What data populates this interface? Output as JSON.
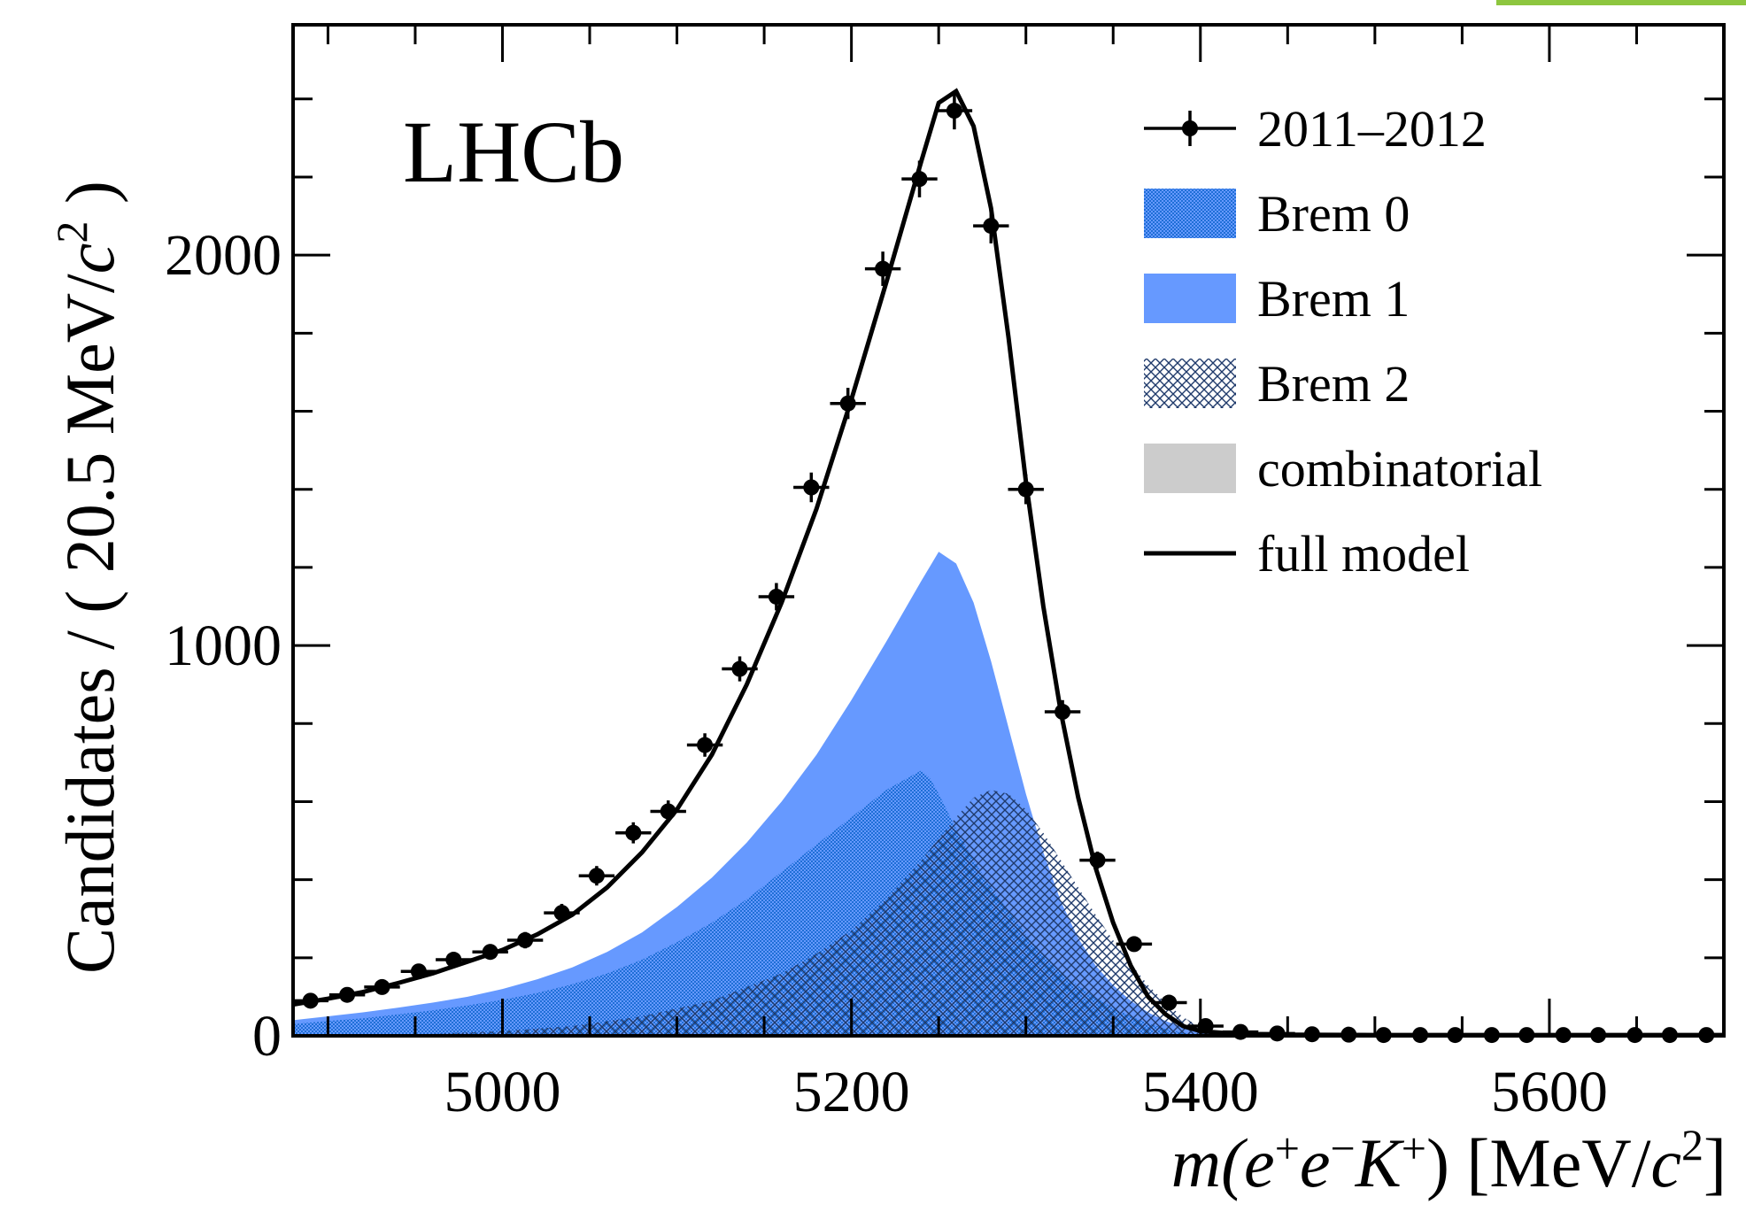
{
  "chart_data": {
    "type": "line",
    "experiment_label": "LHCb",
    "xlabel": {
      "main": "m(e",
      "plus1": "+",
      "e": "e",
      "minus": "−",
      "K": "K",
      "plus2": "+",
      "tail": ") [MeV/",
      "c": "c",
      "sq": "2",
      "end": "]"
    },
    "ylabel": {
      "main": "Candidates / ( 20.5 MeV/",
      "c": "c",
      "sq": "2",
      "end": " )"
    },
    "xlim": [
      4880,
      5700
    ],
    "ylim": [
      0,
      2590
    ],
    "x_ticks": [
      5000,
      5200,
      5400,
      5600
    ],
    "x_tick_labels": [
      "5000",
      "5200",
      "5400",
      "5600"
    ],
    "y_ticks": [
      0,
      1000,
      2000
    ],
    "y_tick_labels": [
      "0",
      "1000",
      "2000"
    ],
    "legend": {
      "placement": "top-right",
      "entries": [
        {
          "label": "2011–2012",
          "style": "data"
        },
        {
          "label": "Brem 0",
          "style": "brem0"
        },
        {
          "label": "Brem 1",
          "style": "brem1"
        },
        {
          "label": "Brem 2",
          "style": "brem2"
        },
        {
          "label": "combinatorial",
          "style": "comb"
        },
        {
          "label": "full model",
          "style": "line"
        }
      ]
    },
    "colors": {
      "brem1": "#6699ff",
      "brem0": "#1f6fd6",
      "brem2": "#1f3a6b",
      "combinatorial": "#cccccc",
      "model": "#000000"
    },
    "bin_width": 20.5,
    "data_points": [
      {
        "x": 4890,
        "y": 90,
        "err": 15
      },
      {
        "x": 4911,
        "y": 105,
        "err": 15
      },
      {
        "x": 4931,
        "y": 125,
        "err": 16
      },
      {
        "x": 4952,
        "y": 165,
        "err": 18
      },
      {
        "x": 4972,
        "y": 195,
        "err": 19
      },
      {
        "x": 4993,
        "y": 215,
        "err": 20
      },
      {
        "x": 5013,
        "y": 245,
        "err": 21
      },
      {
        "x": 5034,
        "y": 315,
        "err": 23
      },
      {
        "x": 5054,
        "y": 410,
        "err": 25
      },
      {
        "x": 5075,
        "y": 520,
        "err": 27
      },
      {
        "x": 5095,
        "y": 575,
        "err": 28
      },
      {
        "x": 5116,
        "y": 745,
        "err": 30
      },
      {
        "x": 5136,
        "y": 940,
        "err": 32
      },
      {
        "x": 5157,
        "y": 1125,
        "err": 35
      },
      {
        "x": 5177,
        "y": 1405,
        "err": 38
      },
      {
        "x": 5198,
        "y": 1620,
        "err": 40
      },
      {
        "x": 5218,
        "y": 1965,
        "err": 44
      },
      {
        "x": 5239,
        "y": 2195,
        "err": 47
      },
      {
        "x": 5259,
        "y": 2370,
        "err": 48
      },
      {
        "x": 5280,
        "y": 2075,
        "err": 45
      },
      {
        "x": 5300,
        "y": 1400,
        "err": 38
      },
      {
        "x": 5321,
        "y": 830,
        "err": 30
      },
      {
        "x": 5341,
        "y": 450,
        "err": 22
      },
      {
        "x": 5362,
        "y": 235,
        "err": 16
      },
      {
        "x": 5382,
        "y": 85,
        "err": 10
      },
      {
        "x": 5403,
        "y": 25,
        "err": 6
      },
      {
        "x": 5423,
        "y": 10,
        "err": 4
      },
      {
        "x": 5444,
        "y": 6,
        "err": 3
      },
      {
        "x": 5464,
        "y": 4,
        "err": 3
      },
      {
        "x": 5485,
        "y": 3,
        "err": 3
      },
      {
        "x": 5505,
        "y": 2,
        "err": 2
      },
      {
        "x": 5526,
        "y": 2,
        "err": 2
      },
      {
        "x": 5546,
        "y": 2,
        "err": 2
      },
      {
        "x": 5567,
        "y": 2,
        "err": 2
      },
      {
        "x": 5587,
        "y": 2,
        "err": 2
      },
      {
        "x": 5608,
        "y": 2,
        "err": 2
      },
      {
        "x": 5628,
        "y": 2,
        "err": 2
      },
      {
        "x": 5649,
        "y": 2,
        "err": 2
      },
      {
        "x": 5669,
        "y": 2,
        "err": 2
      },
      {
        "x": 5690,
        "y": 2,
        "err": 2
      }
    ],
    "series": [
      {
        "name": "full model",
        "x": [
          4880,
          4900,
          4920,
          4940,
          4960,
          4980,
          5000,
          5020,
          5040,
          5060,
          5080,
          5100,
          5120,
          5140,
          5160,
          5180,
          5200,
          5220,
          5240,
          5250,
          5260,
          5270,
          5280,
          5290,
          5300,
          5310,
          5320,
          5330,
          5340,
          5350,
          5360,
          5370,
          5380,
          5390,
          5400,
          5420,
          5450,
          5500,
          5600,
          5700
        ],
        "y": [
          80,
          95,
          112,
          135,
          160,
          190,
          220,
          260,
          310,
          380,
          470,
          580,
          720,
          900,
          1110,
          1350,
          1630,
          1930,
          2240,
          2390,
          2420,
          2330,
          2120,
          1790,
          1420,
          1100,
          830,
          610,
          430,
          290,
          180,
          100,
          55,
          25,
          12,
          5,
          3,
          2,
          2,
          2
        ]
      },
      {
        "name": "Brem 1",
        "x": [
          4880,
          4900,
          4920,
          4940,
          4960,
          4980,
          5000,
          5020,
          5040,
          5060,
          5080,
          5100,
          5120,
          5140,
          5160,
          5180,
          5200,
          5220,
          5240,
          5250,
          5260,
          5270,
          5280,
          5290,
          5300,
          5310,
          5320,
          5330,
          5340,
          5350,
          5360,
          5370,
          5380,
          5390,
          5400,
          5420,
          5450,
          5700
        ],
        "y": [
          40,
          50,
          60,
          72,
          85,
          100,
          120,
          145,
          175,
          215,
          265,
          330,
          405,
          495,
          600,
          720,
          860,
          1010,
          1165,
          1240,
          1210,
          1110,
          960,
          790,
          620,
          470,
          345,
          250,
          180,
          130,
          90,
          60,
          38,
          22,
          12,
          5,
          2,
          2
        ]
      },
      {
        "name": "Brem 0",
        "x": [
          4880,
          4900,
          4920,
          4940,
          4960,
          4980,
          5000,
          5020,
          5040,
          5060,
          5080,
          5100,
          5120,
          5140,
          5160,
          5180,
          5200,
          5220,
          5240,
          5245,
          5250,
          5260,
          5270,
          5280,
          5290,
          5300,
          5310,
          5320,
          5330,
          5340,
          5350,
          5360,
          5370,
          5380,
          5390,
          5400,
          5410,
          5700
        ],
        "y": [
          30,
          38,
          45,
          55,
          65,
          78,
          92,
          110,
          132,
          160,
          195,
          240,
          290,
          350,
          420,
          490,
          560,
          630,
          680,
          660,
          620,
          530,
          450,
          380,
          320,
          260,
          210,
          165,
          128,
          98,
          72,
          50,
          32,
          18,
          8,
          3,
          1,
          0
        ]
      },
      {
        "name": "Brem 2",
        "x": [
          4880,
          4920,
          4960,
          5000,
          5040,
          5080,
          5120,
          5160,
          5180,
          5200,
          5220,
          5240,
          5260,
          5270,
          5280,
          5290,
          5300,
          5310,
          5320,
          5330,
          5340,
          5350,
          5360,
          5370,
          5380,
          5390,
          5400,
          5410,
          5420,
          5440,
          5700
        ],
        "y": [
          0,
          2,
          5,
          12,
          25,
          50,
          90,
          160,
          210,
          270,
          350,
          450,
          560,
          610,
          630,
          620,
          580,
          520,
          450,
          380,
          310,
          245,
          185,
          130,
          85,
          48,
          22,
          8,
          3,
          0,
          0
        ]
      },
      {
        "name": "combinatorial",
        "x": [
          4880,
          5700
        ],
        "y": [
          2,
          2
        ]
      }
    ]
  }
}
